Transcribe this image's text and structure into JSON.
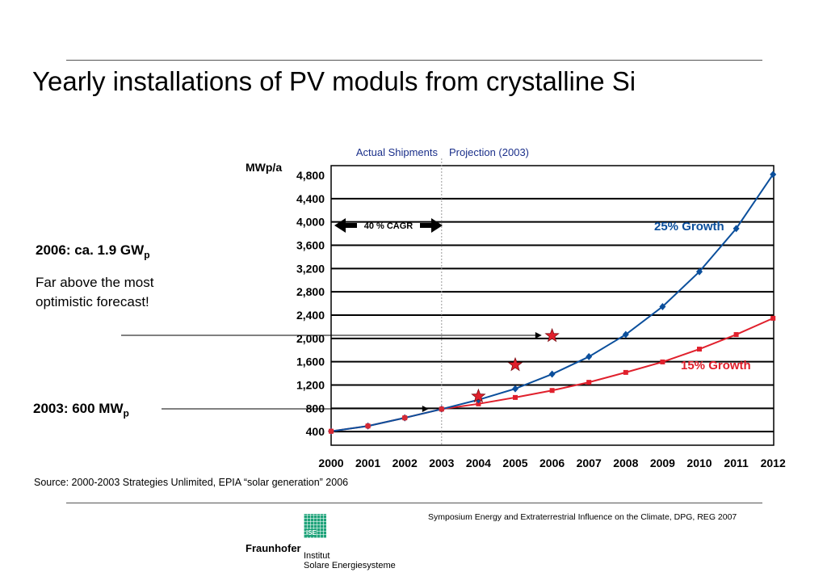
{
  "page": {
    "title": "Yearly installations of PV moduls from crystalline Si",
    "fact_2006_heading": "2006:  ca. 1.9 GW",
    "fact_2006_heading_sub": "p",
    "fact_2006_body_line1": "Far above the most",
    "fact_2006_body_line2": "optimistic forecast!",
    "fact_2003_heading": "2003:  600 MW",
    "fact_2003_heading_sub": "p",
    "source": "Source: 2000-2003 Strategies Unlimited, EPIA “solar generation” 2006",
    "footer": "Symposium Energy and Extraterrestrial Influence on the Climate, DPG, REG 2007",
    "logo_icon_text": "ISE",
    "logo_name": "Fraunhofer",
    "logo_institute_line1": "Institut",
    "logo_institute_line2": "Solare Energiesysteme"
  },
  "chart_data": {
    "type": "line",
    "ylabel": "MWp/a",
    "x": [
      "2000",
      "2001",
      "2002",
      "2003",
      "2004",
      "2005",
      "2006",
      "2007",
      "2008",
      "2009",
      "2010",
      "2011",
      "2012"
    ],
    "ylim": [
      0,
      4800
    ],
    "yticks": [
      400,
      800,
      1200,
      1600,
      2000,
      2400,
      2800,
      3200,
      3600,
      4000,
      4400,
      4800
    ],
    "ytick_labels": [
      "400",
      "800",
      "1,200",
      "1,600",
      "2,000",
      "2,400",
      "2,800",
      "3,200",
      "3,600",
      "4,000",
      "4,400",
      "4,800"
    ],
    "grid": "horizontal",
    "divider_x": "2003",
    "region_labels": {
      "actual": "Actual Shipments",
      "projection": "Projection (2003)"
    },
    "cagr_label": "40 % CAGR",
    "series": [
      {
        "name": "25% Growth",
        "color": "#0b4f9c",
        "marker": "diamond",
        "values": [
          240,
          330,
          470,
          620,
          780,
          970,
          1220,
          1520,
          1900,
          2380,
          2980,
          3720,
          4650
        ]
      },
      {
        "name": "15% Growth",
        "color": "#e0202c",
        "marker": "square",
        "values": [
          240,
          330,
          470,
          620,
          710,
          820,
          940,
          1080,
          1250,
          1430,
          1650,
          1900,
          2180
        ]
      }
    ],
    "actual_points": {
      "color": "#d42a35",
      "values": [
        240,
        330,
        470,
        620
      ]
    },
    "stars": [
      {
        "x": "2004",
        "value": 840
      },
      {
        "x": "2005",
        "value": 1380
      },
      {
        "x": "2006",
        "value": 1880
      }
    ],
    "star_color": "#e0202c"
  }
}
